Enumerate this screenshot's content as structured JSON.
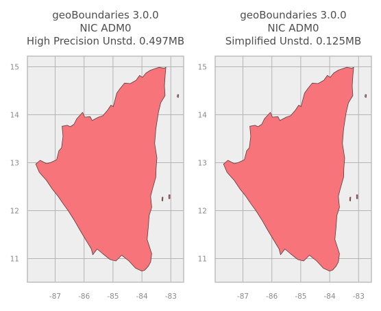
{
  "panels": [
    {
      "title_lines": [
        "geoBoundaries 3.0.0",
        "NIC ADM0",
        "High Precision Unstd. 0.497MB"
      ]
    },
    {
      "title_lines": [
        "geoBoundaries 3.0.0",
        "NIC ADM0",
        "Simplified Unstd. 0.125MB"
      ]
    }
  ],
  "axes": {
    "x_ticks": [
      "-87",
      "-86",
      "-85",
      "-84",
      "-83"
    ],
    "y_ticks": [
      "15",
      "14",
      "13",
      "12",
      "11"
    ],
    "x_tick_values": [
      -87,
      -86,
      -85,
      -84,
      -83
    ],
    "y_tick_values": [
      15,
      14,
      13,
      12,
      11
    ]
  },
  "colors": {
    "fill": "#f7747a",
    "stroke": "#5a3a3a",
    "panel_bg": "#eeeeee",
    "grid": "#b4b4b4"
  }
}
